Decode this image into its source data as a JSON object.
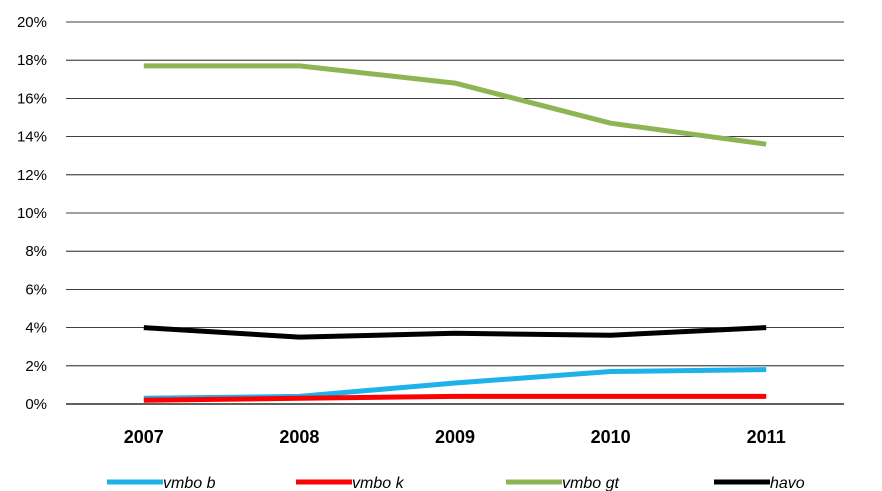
{
  "chart_data": {
    "type": "line",
    "title": "",
    "xlabel": "",
    "ylabel": "",
    "categories": [
      "2007",
      "2008",
      "2009",
      "2010",
      "2011"
    ],
    "ylim": [
      0,
      20
    ],
    "yticks": [
      "0%",
      "2%",
      "4%",
      "6%",
      "8%",
      "10%",
      "12%",
      "14%",
      "16%",
      "18%",
      "20%"
    ],
    "grid": "horizontal",
    "legend": "bottom",
    "series": [
      {
        "name": "vmbo b",
        "color": "#1fb2ea",
        "values": [
          0.3,
          0.4,
          1.1,
          1.7,
          1.8
        ]
      },
      {
        "name": "vmbo k",
        "color": "#ff0000",
        "values": [
          0.2,
          0.3,
          0.4,
          0.4,
          0.4
        ]
      },
      {
        "name": "vmbo gt",
        "color": "#8db554",
        "values": [
          17.7,
          17.7,
          16.8,
          14.7,
          13.6
        ]
      },
      {
        "name": "havo",
        "color": "#000000",
        "values": [
          4.0,
          3.5,
          3.7,
          3.6,
          4.0
        ]
      }
    ]
  }
}
